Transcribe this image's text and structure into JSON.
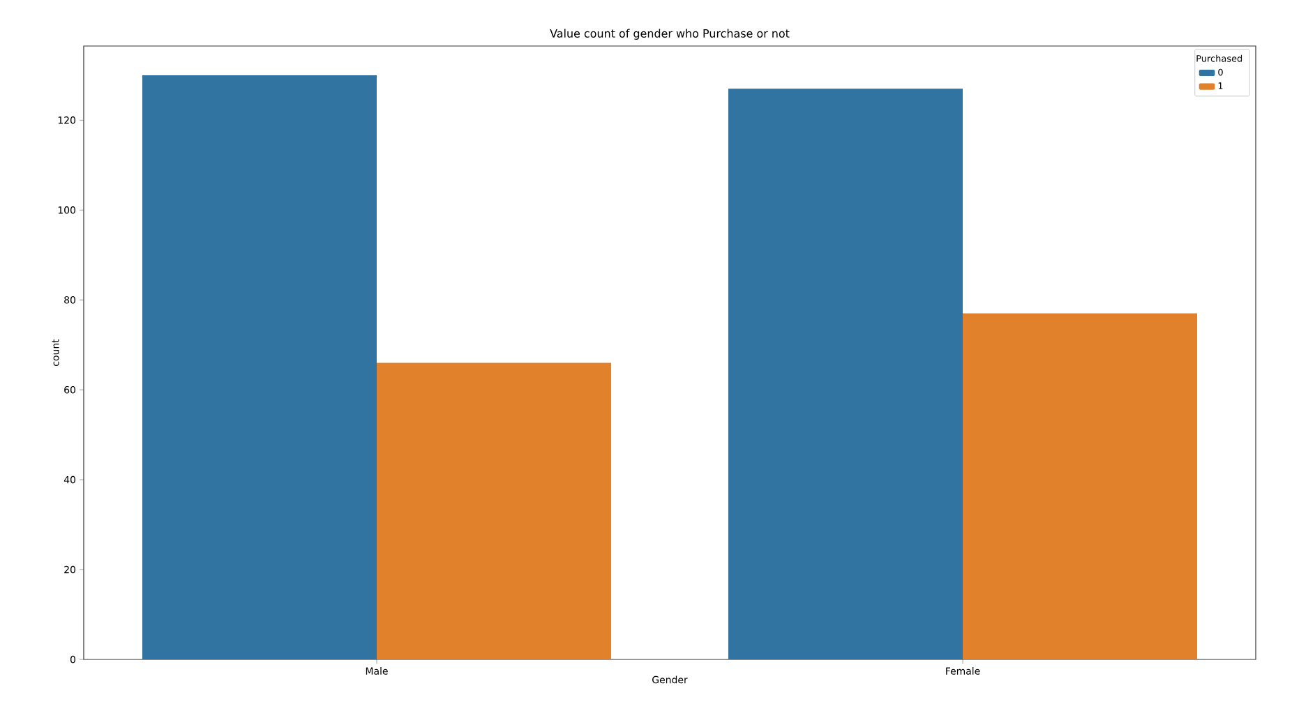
{
  "chart_data": {
    "type": "bar",
    "title": "Value count of gender who Purchase or not",
    "xlabel": "Gender",
    "ylabel": "count",
    "legend_title": "Purchased",
    "categories": [
      "Male",
      "Female"
    ],
    "series": [
      {
        "name": "0",
        "color": "#3274a1",
        "values": [
          130,
          127
        ]
      },
      {
        "name": "1",
        "color": "#e1812c",
        "values": [
          66,
          77
        ]
      }
    ],
    "ylim": [
      0,
      136.5
    ],
    "yticks": [
      0,
      20,
      40,
      60,
      80,
      100,
      120
    ],
    "legend": "top right"
  }
}
